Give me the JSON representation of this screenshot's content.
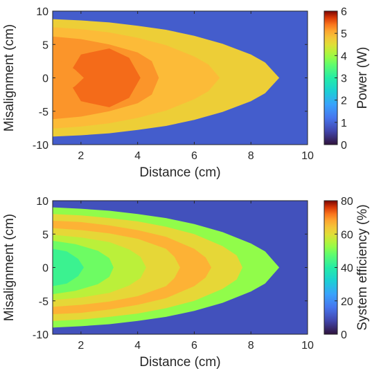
{
  "chart_data": [
    {
      "type": "heatmap",
      "xlabel": "Distance (cm)",
      "ylabel": "Misalignment (cm)",
      "colorbar_label": "Power (W)",
      "xlim": [
        1,
        10
      ],
      "ylim": [
        -10,
        10
      ],
      "clim": [
        0,
        6
      ],
      "xticks": [
        2,
        4,
        6,
        8,
        10
      ],
      "yticks": [
        -10,
        -5,
        0,
        5,
        10
      ],
      "colorbar_ticks": [
        0,
        1,
        2,
        3,
        4,
        5,
        6
      ],
      "colormap": "turbo",
      "background_value": 0.9,
      "contour_regions": [
        {
          "value": 4.7,
          "boundary_x": [
            1,
            2,
            3,
            4,
            5,
            6,
            7,
            8,
            8.5,
            9
          ],
          "boundary_y": [
            8.8,
            8.6,
            8.3,
            7.8,
            7.2,
            6.3,
            5.1,
            3.5,
            2.3,
            0
          ]
        },
        {
          "value": 4.95,
          "boundary_x": [
            1,
            2,
            3,
            4,
            5,
            6,
            6.5,
            6.9
          ],
          "boundary_y": [
            7.6,
            7.3,
            6.8,
            6.0,
            4.9,
            3.2,
            2.0,
            0
          ]
        },
        {
          "value": 5.2,
          "boundary_x": [
            1,
            2,
            3,
            4,
            4.5,
            4.75
          ],
          "boundary_y": [
            6.2,
            5.8,
            5.0,
            3.8,
            2.5,
            0
          ]
        },
        {
          "value": 5.45,
          "boundary_x": [
            1.5,
            2,
            3,
            3.7,
            4.1
          ],
          "boundary_y": [
            0,
            3.5,
            4.4,
            3.0,
            0
          ]
        },
        {
          "value": 5.2,
          "boundary_x": [
            1,
            1.4,
            1.8,
            2.1
          ],
          "boundary_y": [
            2.8,
            2.4,
            1.2,
            0
          ]
        }
      ]
    },
    {
      "type": "heatmap",
      "xlabel": "Distance (cm)",
      "ylabel": "Misalignment (cm)",
      "colorbar_label": "System efficiency (%)",
      "xlim": [
        1,
        10
      ],
      "ylim": [
        -10,
        10
      ],
      "clim": [
        0,
        80
      ],
      "xticks": [
        2,
        4,
        6,
        8,
        10
      ],
      "yticks": [
        -10,
        -5,
        0,
        5,
        10
      ],
      "colorbar_ticks": [
        0,
        20,
        40,
        60,
        80
      ],
      "colormap": "turbo",
      "background_value": 10,
      "contour_regions": [
        {
          "value": 52,
          "boundary_x": [
            1,
            2,
            3,
            4,
            5,
            6,
            7,
            8,
            8.5,
            9
          ],
          "boundary_y": [
            9.0,
            8.8,
            8.5,
            8.0,
            7.4,
            6.5,
            5.3,
            3.6,
            2.4,
            0
          ]
        },
        {
          "value": 61,
          "boundary_x": [
            1,
            2,
            3,
            4,
            5,
            6,
            7,
            7.5,
            7.7
          ],
          "boundary_y": [
            8.0,
            7.8,
            7.4,
            6.9,
            6.1,
            5.0,
            3.2,
            1.8,
            0
          ]
        },
        {
          "value": 67,
          "boundary_x": [
            1,
            2,
            3,
            4,
            5,
            6,
            6.4,
            6.6
          ],
          "boundary_y": [
            7.0,
            6.8,
            6.3,
            5.6,
            4.6,
            2.8,
            1.5,
            0
          ]
        },
        {
          "value": 61,
          "boundary_x": [
            1,
            2,
            3,
            4,
            5,
            5.3,
            5.5
          ],
          "boundary_y": [
            5.9,
            5.6,
            5.1,
            4.3,
            2.8,
            1.6,
            0
          ]
        },
        {
          "value": 56,
          "boundary_x": [
            1,
            2,
            3,
            3.7,
            4.1,
            4.3
          ],
          "boundary_y": [
            4.9,
            4.5,
            3.8,
            2.7,
            1.6,
            0
          ]
        },
        {
          "value": 49,
          "boundary_x": [
            1,
            1.8,
            2.6,
            3.0,
            3.15
          ],
          "boundary_y": [
            4.0,
            3.5,
            2.5,
            1.4,
            0
          ]
        },
        {
          "value": 43,
          "boundary_x": [
            1,
            1.5,
            1.9,
            2.1
          ],
          "boundary_y": [
            2.8,
            2.4,
            1.3,
            0
          ]
        }
      ]
    }
  ]
}
